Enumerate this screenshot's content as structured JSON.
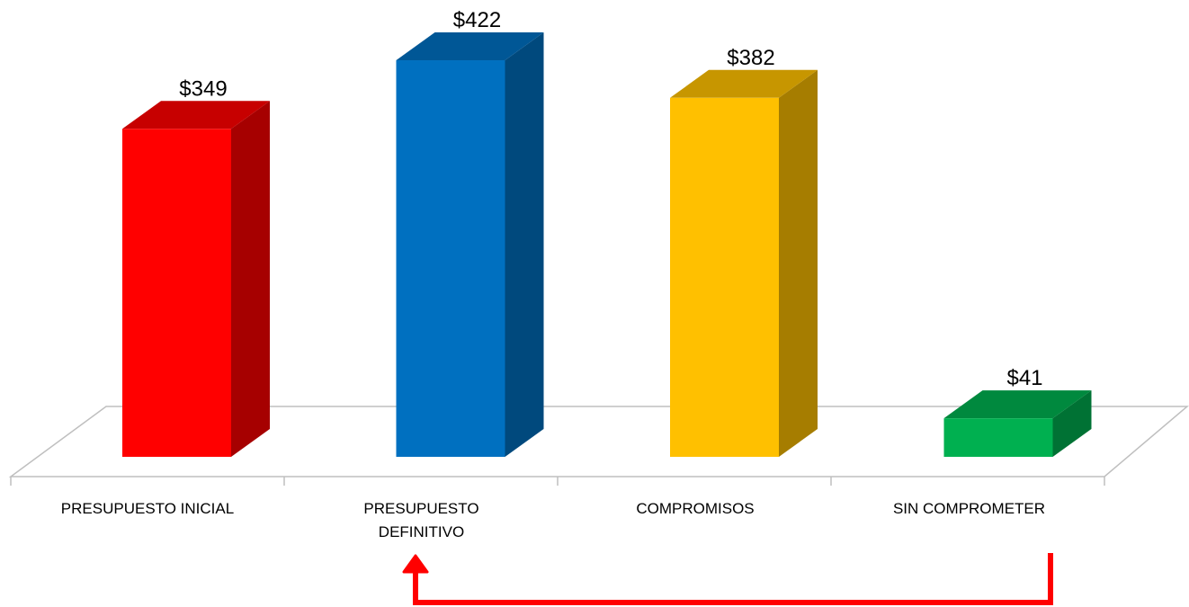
{
  "chart_data": {
    "type": "bar3d",
    "categories": [
      "PRESUPUESTO INICIAL",
      "PRESUPUESTO DEFINITIVO",
      "COMPROMISOS",
      "SIN COMPROMETER"
    ],
    "values": [
      349,
      422,
      382,
      41
    ],
    "value_labels": [
      "$349",
      "$422",
      "$382",
      "$41"
    ],
    "colors": [
      "#ff0000",
      "#0070c0",
      "#ffc000",
      "#00b050"
    ]
  }
}
